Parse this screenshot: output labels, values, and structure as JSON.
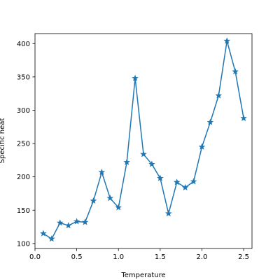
{
  "chart_data": {
    "type": "line",
    "xlabel": "Temperature",
    "ylabel": "Specific heat",
    "xlim": [
      0.0,
      2.6
    ],
    "ylim": [
      92.5,
      415.0
    ],
    "x_ticks": [
      0.0,
      0.5,
      1.0,
      1.5,
      2.0,
      2.5
    ],
    "x_tick_labels": [
      "0.0",
      "0.5",
      "1.0",
      "1.5",
      "2.0",
      "2.5"
    ],
    "y_ticks": [
      100,
      150,
      200,
      250,
      300,
      350,
      400
    ],
    "y_tick_labels": [
      "100",
      "150",
      "200",
      "250",
      "300",
      "350",
      "400"
    ],
    "grid": false,
    "marker": "star",
    "line_color": "#1f77b4",
    "series": [
      {
        "x": [
          0.1,
          0.2,
          0.3,
          0.4,
          0.5,
          0.6,
          0.7,
          0.8,
          0.9,
          1.0,
          1.1,
          1.2,
          1.3,
          1.4,
          1.5,
          1.6,
          1.7,
          1.8,
          1.9,
          2.0,
          2.1,
          2.2,
          2.3,
          2.4,
          2.5
        ],
        "y": [
          115,
          107,
          131,
          127,
          133,
          132,
          164,
          207,
          168,
          154,
          222,
          348,
          234,
          219,
          198,
          145,
          192,
          184,
          193,
          245,
          282,
          322,
          404,
          358,
          288
        ]
      }
    ]
  }
}
